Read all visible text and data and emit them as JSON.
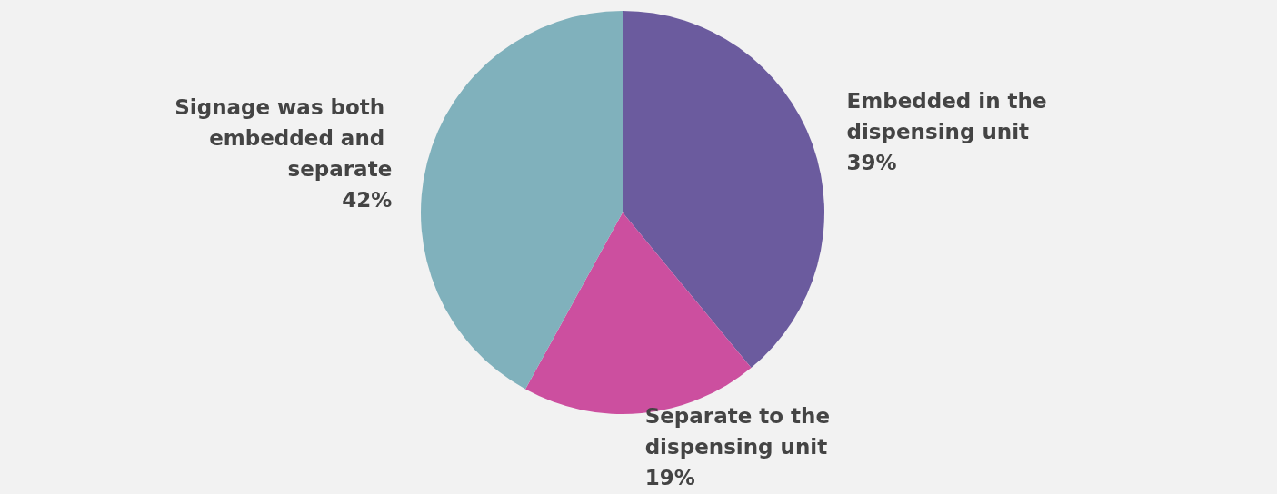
{
  "chart_data": {
    "type": "pie",
    "categories": [
      "Embedded in the dispensing unit",
      "Separate to the dispensing unit",
      "Signage was both embedded and separate"
    ],
    "values": [
      39,
      19,
      42
    ],
    "value_labels": [
      "39%",
      "19%",
      "42%"
    ],
    "colors": [
      "#6b5b9e",
      "#cc4f9f",
      "#80b1bc"
    ],
    "legend": false
  }
}
